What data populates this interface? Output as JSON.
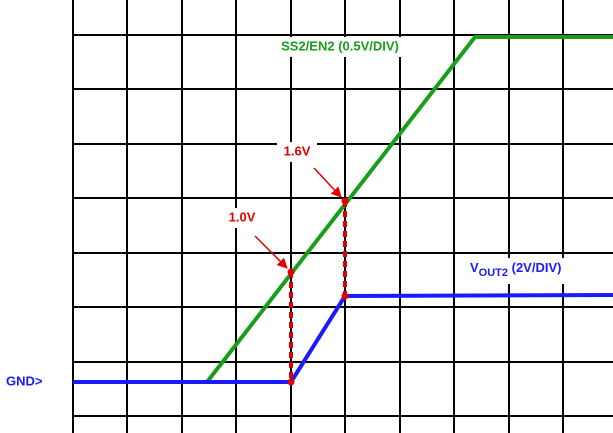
{
  "labels": {
    "ss2": "SS2/EN2 (0.5V/DIV)",
    "vout": {
      "main": "V",
      "subscript": "OUT2",
      "suffix": " (2V/DIV)"
    },
    "gnd": "GND>",
    "v10": "1.0V",
    "v16": "1.6V"
  }
}
